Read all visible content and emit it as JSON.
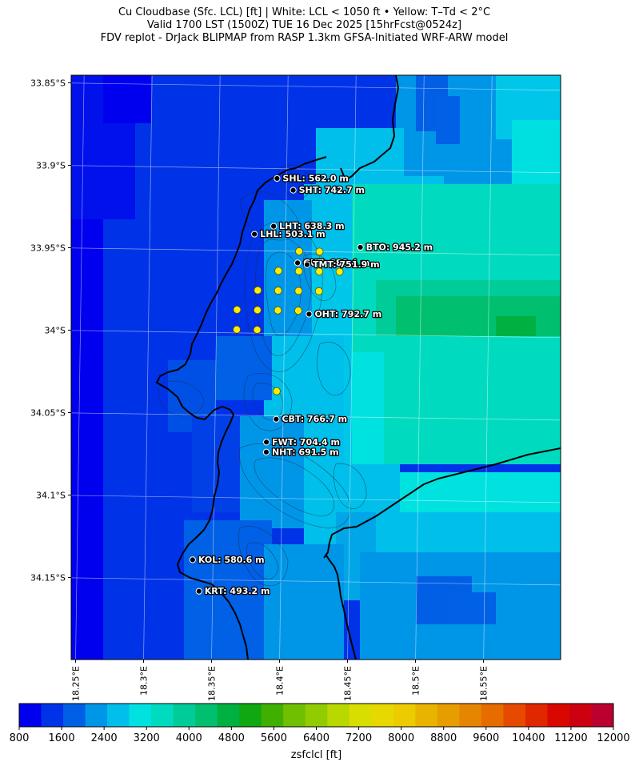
{
  "title": {
    "line1": "Cu Cloudbase (Sfc. LCL) [ft]  |  White: LCL < 1050 ft • Yellow: T–Td < 2°C",
    "line2": "Valid 1700 LST (1500Z) TUE 16 Dec 2025 [15hrFcst@0524z]",
    "line3": "FDV replot - DrJack BLIPMAP from RASP 1.3km GFSA-Initiated WRF-ARW model"
  },
  "map": {
    "lat_ticks": [
      {
        "lat": -33.85,
        "label": "33.85°S"
      },
      {
        "lat": -33.9,
        "label": "33.9°S"
      },
      {
        "lat": -33.95,
        "label": "33.95°S"
      },
      {
        "lat": -34.0,
        "label": "34°S"
      },
      {
        "lat": -34.05,
        "label": "34.05°S"
      },
      {
        "lat": -34.1,
        "label": "34.1°S"
      },
      {
        "lat": -34.15,
        "label": "34.15°S"
      }
    ],
    "lon_ticks": [
      {
        "lon": 18.25,
        "label": "18.25°E"
      },
      {
        "lon": 18.3,
        "label": "18.3°E"
      },
      {
        "lon": 18.35,
        "label": "18.35°E"
      },
      {
        "lon": 18.4,
        "label": "18.4°E"
      },
      {
        "lon": 18.45,
        "label": "18.45°E"
      },
      {
        "lon": 18.5,
        "label": "18.5°E"
      },
      {
        "lon": 18.55,
        "label": "18.55°E"
      }
    ],
    "stations": [
      {
        "id": "SHL",
        "label": "SHL: 562.0 m",
        "lon": 18.393,
        "lat": -33.906
      },
      {
        "id": "SHT",
        "label": "SHT: 742.7 m",
        "lon": 18.405,
        "lat": -33.913
      },
      {
        "id": "LHT",
        "label": "LHT: 638.3 m",
        "lon": 18.391,
        "lat": -33.935
      },
      {
        "id": "LHL",
        "label": "LHL: 503.1 m",
        "lon": 18.377,
        "lat": -33.94
      },
      {
        "id": "BTO",
        "label": "BTO: 945.2 m",
        "lon": 18.455,
        "lat": -33.947
      },
      {
        "id": "GUT",
        "label": "GUT: 688.4 m",
        "lon": 18.409,
        "lat": -33.957
      },
      {
        "id": "TMT",
        "label": "TMT: 751.9 m",
        "lon": 18.416,
        "lat": -33.958
      },
      {
        "id": "OHT",
        "label": "OHT: 792.7 m",
        "lon": 18.418,
        "lat": -33.988
      },
      {
        "id": "CBT",
        "label": "CBT: 766.7 m",
        "lon": 18.395,
        "lat": -34.052
      },
      {
        "id": "FWT",
        "label": "FWT: 704.4 m",
        "lon": 18.388,
        "lat": -34.066
      },
      {
        "id": "NHT",
        "label": "NHT: 691.5 m",
        "lon": 18.388,
        "lat": -34.072
      },
      {
        "id": "KOL",
        "label": "KOL: 580.6 m",
        "lon": 18.335,
        "lat": -34.138
      },
      {
        "id": "KRT",
        "label": "KRT: 493.2 m",
        "lon": 18.34,
        "lat": -34.157
      }
    ],
    "yellow_points": [
      {
        "lon": 18.41,
        "lat": -33.95
      },
      {
        "lon": 18.425,
        "lat": -33.95
      },
      {
        "lon": 18.395,
        "lat": -33.962
      },
      {
        "lon": 18.41,
        "lat": -33.962
      },
      {
        "lon": 18.425,
        "lat": -33.962
      },
      {
        "lon": 18.44,
        "lat": -33.962
      },
      {
        "lon": 18.38,
        "lat": -33.974
      },
      {
        "lon": 18.395,
        "lat": -33.974
      },
      {
        "lon": 18.41,
        "lat": -33.974
      },
      {
        "lon": 18.425,
        "lat": -33.974
      },
      {
        "lon": 18.365,
        "lat": -33.986
      },
      {
        "lon": 18.38,
        "lat": -33.986
      },
      {
        "lon": 18.395,
        "lat": -33.986
      },
      {
        "lon": 18.41,
        "lat": -33.986
      },
      {
        "lon": 18.365,
        "lat": -33.998
      },
      {
        "lon": 18.38,
        "lat": -33.998
      },
      {
        "lon": 18.395,
        "lat": -34.035
      }
    ]
  },
  "colorbar": {
    "label": "zsfclcl [ft]",
    "min": 800,
    "max": 12000,
    "tick_values": [
      "800",
      "1600",
      "2400",
      "3200",
      "4000",
      "4800",
      "5600",
      "6400",
      "7200",
      "8000",
      "8800",
      "9600",
      "10400",
      "11200",
      "12000"
    ],
    "colors": [
      "#0000ee",
      "#0033e8",
      "#005fe5",
      "#0096e8",
      "#00bfea",
      "#00e2e0",
      "#00dbbf",
      "#00cc99",
      "#00c070",
      "#00b040",
      "#10a810",
      "#40b000",
      "#70bf00",
      "#90cc00",
      "#b8d800",
      "#d8de00",
      "#e6d800",
      "#eccc00",
      "#e9b400",
      "#e69d00",
      "#e68500",
      "#e66c00",
      "#e64a00",
      "#e02800",
      "#d80800",
      "#cc0010",
      "#bb0030"
    ]
  }
}
